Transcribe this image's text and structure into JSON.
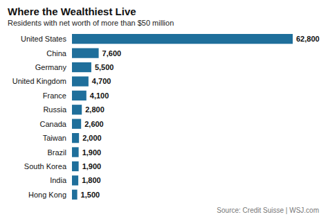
{
  "chart_data": {
    "type": "bar",
    "orientation": "horizontal",
    "title": "Where the Wealthiest Live",
    "subtitle": "Residents with net worth of more than $50 million",
    "source": "Source: Credit Suisse | WSJ.com",
    "categories": [
      "United States",
      "China",
      "Germany",
      "United Kingdom",
      "France",
      "Russia",
      "Canada",
      "Taiwan",
      "Brazil",
      "South Korea",
      "India",
      "Hong Kong"
    ],
    "values": [
      62800,
      7600,
      5500,
      4700,
      4100,
      2800,
      2600,
      2000,
      1900,
      1900,
      1800,
      1500
    ],
    "value_labels": [
      "62,800",
      "7,600",
      "5,500",
      "4,700",
      "4,100",
      "2,800",
      "2,600",
      "2,000",
      "1,900",
      "1,900",
      "1,800",
      "1,500"
    ],
    "data_labels": true,
    "color": "#1f6f9b",
    "xlim": [
      0,
      62800
    ],
    "grid": false,
    "tick_labels": "y"
  }
}
